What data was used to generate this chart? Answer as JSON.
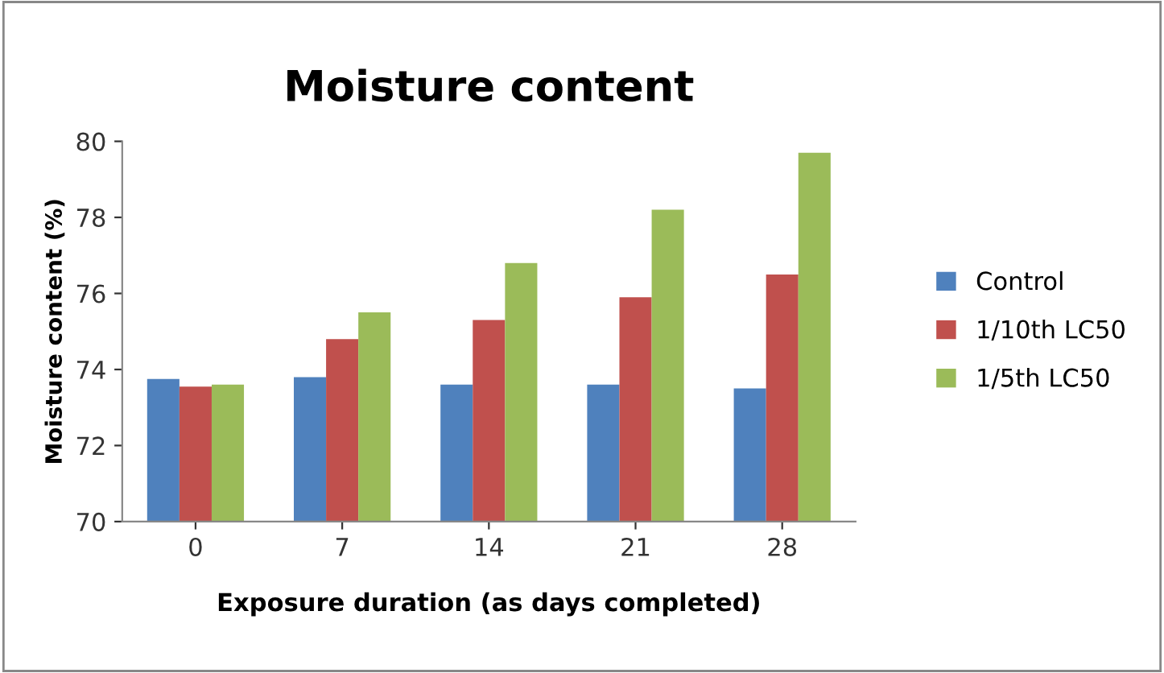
{
  "chart_data": {
    "type": "bar",
    "title": "Moisture content",
    "xlabel": "Exposure duration (as days completed)",
    "ylabel": "Moisture content (%)",
    "categories": [
      "0",
      "7",
      "14",
      "21",
      "28"
    ],
    "series": [
      {
        "name": "Control",
        "color": "#4f81bd",
        "values": [
          73.75,
          73.8,
          73.6,
          73.6,
          73.5
        ]
      },
      {
        "name": "1/10th LC50",
        "color": "#c0504d",
        "values": [
          73.55,
          74.8,
          75.3,
          75.9,
          76.5
        ]
      },
      {
        "name": "1/5th LC50",
        "color": "#9bbb59",
        "values": [
          73.6,
          75.5,
          76.8,
          78.2,
          79.7
        ]
      }
    ],
    "ylim": [
      70,
      80
    ],
    "yticks": [
      70,
      72,
      74,
      76,
      78,
      80
    ],
    "grid": false,
    "legend": "right"
  }
}
